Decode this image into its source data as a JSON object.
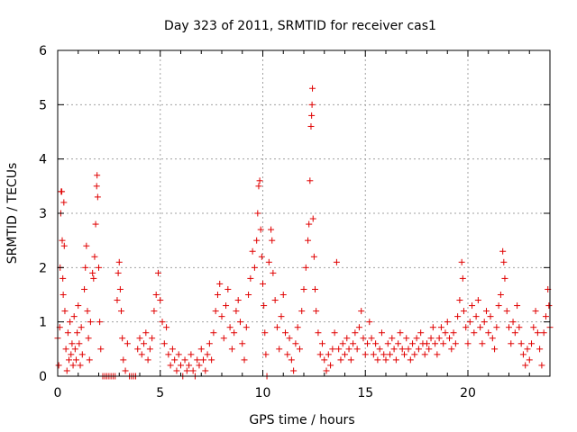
{
  "chart_data": {
    "type": "scatter",
    "title": "Day 323 of 2011, SRMTID for receiver cas1",
    "xlabel": "GPS time / hours",
    "ylabel": "SRMTID / TECUs",
    "xlim": [
      0,
      24
    ],
    "ylim": [
      0,
      6
    ],
    "xticks": [
      0,
      5,
      10,
      15,
      20
    ],
    "yticks": [
      0,
      1,
      2,
      3,
      4,
      5,
      6
    ],
    "xtick_labels": [
      "0",
      "5",
      "10",
      "15",
      "20"
    ],
    "ytick_labels": [
      "0",
      "1",
      "2",
      "3",
      "4",
      "5",
      "6"
    ],
    "grid": true,
    "marker": "+",
    "color": "#e00000",
    "series": [
      {
        "name": "SRMTID",
        "points": [
          [
            0.0,
            0.7
          ],
          [
            0.05,
            0.2
          ],
          [
            0.1,
            0.9
          ],
          [
            0.12,
            2.0
          ],
          [
            0.15,
            3.0
          ],
          [
            0.17,
            3.4
          ],
          [
            0.2,
            3.4
          ],
          [
            0.22,
            2.5
          ],
          [
            0.25,
            1.8
          ],
          [
            0.27,
            1.5
          ],
          [
            0.3,
            3.2
          ],
          [
            0.32,
            2.4
          ],
          [
            0.35,
            1.2
          ],
          [
            0.4,
            0.5
          ],
          [
            0.45,
            0.1
          ],
          [
            0.5,
            0.8
          ],
          [
            0.55,
            0.3
          ],
          [
            0.6,
            1.0
          ],
          [
            0.65,
            0.4
          ],
          [
            0.7,
            0.6
          ],
          [
            0.75,
            0.2
          ],
          [
            0.8,
            1.1
          ],
          [
            0.85,
            0.5
          ],
          [
            0.9,
            0.3
          ],
          [
            0.95,
            0.8
          ],
          [
            1.0,
            1.3
          ],
          [
            1.05,
            0.6
          ],
          [
            1.1,
            0.2
          ],
          [
            1.15,
            0.9
          ],
          [
            1.2,
            0.4
          ],
          [
            1.3,
            1.6
          ],
          [
            1.35,
            2.0
          ],
          [
            1.4,
            2.4
          ],
          [
            1.45,
            1.2
          ],
          [
            1.5,
            0.7
          ],
          [
            1.55,
            0.3
          ],
          [
            1.6,
            1.0
          ],
          [
            1.7,
            1.9
          ],
          [
            1.75,
            1.8
          ],
          [
            1.8,
            2.2
          ],
          [
            1.85,
            2.8
          ],
          [
            1.9,
            3.5
          ],
          [
            1.92,
            3.7
          ],
          [
            1.95,
            3.3
          ],
          [
            2.0,
            2.0
          ],
          [
            2.05,
            1.0
          ],
          [
            2.1,
            0.5
          ],
          [
            2.2,
            0.0
          ],
          [
            2.3,
            0.0
          ],
          [
            2.4,
            0.0
          ],
          [
            2.5,
            0.0
          ],
          [
            2.6,
            0.0
          ],
          [
            2.7,
            0.0
          ],
          [
            2.8,
            0.0
          ],
          [
            2.9,
            1.4
          ],
          [
            2.95,
            1.9
          ],
          [
            3.0,
            2.1
          ],
          [
            3.05,
            1.6
          ],
          [
            3.1,
            1.2
          ],
          [
            3.15,
            0.7
          ],
          [
            3.2,
            0.3
          ],
          [
            3.3,
            0.1
          ],
          [
            3.4,
            0.6
          ],
          [
            3.5,
            0.0
          ],
          [
            3.6,
            0.0
          ],
          [
            3.7,
            0.0
          ],
          [
            3.8,
            0.0
          ],
          [
            3.9,
            0.5
          ],
          [
            4.0,
            0.7
          ],
          [
            4.1,
            0.4
          ],
          [
            4.2,
            0.6
          ],
          [
            4.3,
            0.8
          ],
          [
            4.4,
            0.3
          ],
          [
            4.5,
            0.5
          ],
          [
            4.6,
            0.7
          ],
          [
            4.7,
            1.2
          ],
          [
            4.8,
            1.5
          ],
          [
            4.9,
            1.9
          ],
          [
            5.0,
            1.4
          ],
          [
            5.1,
            1.0
          ],
          [
            5.2,
            0.6
          ],
          [
            5.3,
            0.9
          ],
          [
            5.4,
            0.4
          ],
          [
            5.5,
            0.2
          ],
          [
            5.6,
            0.5
          ],
          [
            5.7,
            0.3
          ],
          [
            5.8,
            0.1
          ],
          [
            5.9,
            0.4
          ],
          [
            6.0,
            0.2
          ],
          [
            6.1,
            0.0
          ],
          [
            6.2,
            0.3
          ],
          [
            6.3,
            0.1
          ],
          [
            6.4,
            0.2
          ],
          [
            6.5,
            0.4
          ],
          [
            6.6,
            0.1
          ],
          [
            6.7,
            0.0
          ],
          [
            6.8,
            0.3
          ],
          [
            6.9,
            0.2
          ],
          [
            7.0,
            0.5
          ],
          [
            7.1,
            0.3
          ],
          [
            7.2,
            0.1
          ],
          [
            7.3,
            0.4
          ],
          [
            7.4,
            0.6
          ],
          [
            7.5,
            0.3
          ],
          [
            7.6,
            0.8
          ],
          [
            7.7,
            1.2
          ],
          [
            7.8,
            1.5
          ],
          [
            7.9,
            1.7
          ],
          [
            8.0,
            1.1
          ],
          [
            8.1,
            0.7
          ],
          [
            8.2,
            1.3
          ],
          [
            8.3,
            1.6
          ],
          [
            8.4,
            0.9
          ],
          [
            8.5,
            0.5
          ],
          [
            8.6,
            0.8
          ],
          [
            8.7,
            1.2
          ],
          [
            8.8,
            1.4
          ],
          [
            8.9,
            1.0
          ],
          [
            9.0,
            0.6
          ],
          [
            9.1,
            0.3
          ],
          [
            9.2,
            0.9
          ],
          [
            9.3,
            1.5
          ],
          [
            9.4,
            1.8
          ],
          [
            9.5,
            2.3
          ],
          [
            9.6,
            2.0
          ],
          [
            9.7,
            2.5
          ],
          [
            9.75,
            3.0
          ],
          [
            9.8,
            3.5
          ],
          [
            9.85,
            3.6
          ],
          [
            9.9,
            2.7
          ],
          [
            9.95,
            2.2
          ],
          [
            10.0,
            1.7
          ],
          [
            10.05,
            1.3
          ],
          [
            10.1,
            0.8
          ],
          [
            10.15,
            0.4
          ],
          [
            10.2,
            0.0
          ],
          [
            10.3,
            2.1
          ],
          [
            10.4,
            2.7
          ],
          [
            10.45,
            2.5
          ],
          [
            10.5,
            1.9
          ],
          [
            10.6,
            1.4
          ],
          [
            10.7,
            0.9
          ],
          [
            10.8,
            0.5
          ],
          [
            10.9,
            1.1
          ],
          [
            11.0,
            1.5
          ],
          [
            11.1,
            0.8
          ],
          [
            11.2,
            0.4
          ],
          [
            11.3,
            0.7
          ],
          [
            11.4,
            0.3
          ],
          [
            11.5,
            0.1
          ],
          [
            11.6,
            0.6
          ],
          [
            11.7,
            0.9
          ],
          [
            11.8,
            0.5
          ],
          [
            11.9,
            1.2
          ],
          [
            12.0,
            1.6
          ],
          [
            12.1,
            2.0
          ],
          [
            12.2,
            2.5
          ],
          [
            12.25,
            2.8
          ],
          [
            12.3,
            3.6
          ],
          [
            12.35,
            4.6
          ],
          [
            12.38,
            4.8
          ],
          [
            12.4,
            5.0
          ],
          [
            12.42,
            5.3
          ],
          [
            12.45,
            2.9
          ],
          [
            12.5,
            2.2
          ],
          [
            12.55,
            1.6
          ],
          [
            12.6,
            1.2
          ],
          [
            12.7,
            0.8
          ],
          [
            12.8,
            0.4
          ],
          [
            12.9,
            0.6
          ],
          [
            13.0,
            0.3
          ],
          [
            13.1,
            0.1
          ],
          [
            13.2,
            0.4
          ],
          [
            13.3,
            0.2
          ],
          [
            13.4,
            0.5
          ],
          [
            13.5,
            0.8
          ],
          [
            13.6,
            2.1
          ],
          [
            13.7,
            0.5
          ],
          [
            13.8,
            0.3
          ],
          [
            13.9,
            0.6
          ],
          [
            14.0,
            0.4
          ],
          [
            14.1,
            0.7
          ],
          [
            14.2,
            0.5
          ],
          [
            14.3,
            0.3
          ],
          [
            14.4,
            0.6
          ],
          [
            14.5,
            0.8
          ],
          [
            14.6,
            0.5
          ],
          [
            14.7,
            0.9
          ],
          [
            14.8,
            1.2
          ],
          [
            14.9,
            0.7
          ],
          [
            15.0,
            0.4
          ],
          [
            15.1,
            0.6
          ],
          [
            15.2,
            1.0
          ],
          [
            15.3,
            0.7
          ],
          [
            15.4,
            0.4
          ],
          [
            15.5,
            0.6
          ],
          [
            15.6,
            0.3
          ],
          [
            15.7,
            0.5
          ],
          [
            15.8,
            0.8
          ],
          [
            15.9,
            0.4
          ],
          [
            16.0,
            0.3
          ],
          [
            16.1,
            0.6
          ],
          [
            16.2,
            0.4
          ],
          [
            16.3,
            0.7
          ],
          [
            16.4,
            0.5
          ],
          [
            16.5,
            0.3
          ],
          [
            16.6,
            0.6
          ],
          [
            16.7,
            0.8
          ],
          [
            16.8,
            0.5
          ],
          [
            16.9,
            0.4
          ],
          [
            17.0,
            0.7
          ],
          [
            17.1,
            0.5
          ],
          [
            17.2,
            0.3
          ],
          [
            17.3,
            0.6
          ],
          [
            17.4,
            0.4
          ],
          [
            17.5,
            0.7
          ],
          [
            17.6,
            0.5
          ],
          [
            17.7,
            0.8
          ],
          [
            17.8,
            0.6
          ],
          [
            17.9,
            0.4
          ],
          [
            18.0,
            0.6
          ],
          [
            18.1,
            0.5
          ],
          [
            18.2,
            0.7
          ],
          [
            18.3,
            0.9
          ],
          [
            18.4,
            0.6
          ],
          [
            18.5,
            0.4
          ],
          [
            18.6,
            0.7
          ],
          [
            18.7,
            0.9
          ],
          [
            18.8,
            0.6
          ],
          [
            18.9,
            0.8
          ],
          [
            19.0,
            1.0
          ],
          [
            19.1,
            0.7
          ],
          [
            19.2,
            0.5
          ],
          [
            19.3,
            0.8
          ],
          [
            19.4,
            0.6
          ],
          [
            19.5,
            1.1
          ],
          [
            19.6,
            1.4
          ],
          [
            19.7,
            2.1
          ],
          [
            19.75,
            1.8
          ],
          [
            19.8,
            1.2
          ],
          [
            19.9,
            0.9
          ],
          [
            20.0,
            0.6
          ],
          [
            20.1,
            1.0
          ],
          [
            20.2,
            1.3
          ],
          [
            20.3,
            0.8
          ],
          [
            20.4,
            1.1
          ],
          [
            20.5,
            1.4
          ],
          [
            20.6,
            0.9
          ],
          [
            20.7,
            0.6
          ],
          [
            20.8,
            1.0
          ],
          [
            20.9,
            1.2
          ],
          [
            21.0,
            0.8
          ],
          [
            21.1,
            1.1
          ],
          [
            21.2,
            0.7
          ],
          [
            21.3,
            0.5
          ],
          [
            21.4,
            0.9
          ],
          [
            21.5,
            1.3
          ],
          [
            21.6,
            1.5
          ],
          [
            21.7,
            2.3
          ],
          [
            21.75,
            2.1
          ],
          [
            21.8,
            1.8
          ],
          [
            21.9,
            1.2
          ],
          [
            22.0,
            0.9
          ],
          [
            22.1,
            0.6
          ],
          [
            22.2,
            1.0
          ],
          [
            22.3,
            0.8
          ],
          [
            22.4,
            1.3
          ],
          [
            22.5,
            0.9
          ],
          [
            22.6,
            0.6
          ],
          [
            22.7,
            0.4
          ],
          [
            22.8,
            0.2
          ],
          [
            22.9,
            0.5
          ],
          [
            23.0,
            0.3
          ],
          [
            23.1,
            0.6
          ],
          [
            23.2,
            0.9
          ],
          [
            23.3,
            1.2
          ],
          [
            23.4,
            0.8
          ],
          [
            23.5,
            0.5
          ],
          [
            23.6,
            0.2
          ],
          [
            23.7,
            0.8
          ],
          [
            23.8,
            1.1
          ],
          [
            23.9,
            1.6
          ],
          [
            23.95,
            1.3
          ],
          [
            24.0,
            0.9
          ]
        ]
      }
    ]
  }
}
